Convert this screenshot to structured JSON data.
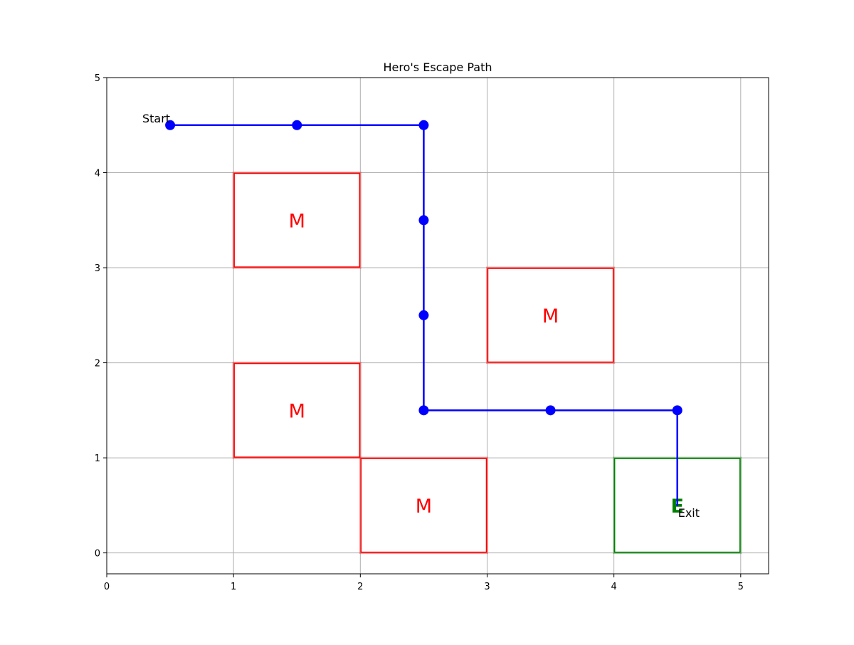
{
  "chart_data": {
    "type": "line",
    "title": "Hero's Escape Path",
    "xlabel": "",
    "ylabel": "",
    "xlim": [
      0,
      5.22
    ],
    "ylim": [
      -0.22,
      5
    ],
    "xticks": [
      "0",
      "1",
      "2",
      "3",
      "4",
      "5"
    ],
    "yticks": [
      "0",
      "1",
      "2",
      "3",
      "4",
      "5"
    ],
    "grid": true,
    "series": [
      {
        "color": "#0000ff",
        "x": [
          0.5,
          1.5,
          2.5,
          2.5,
          2.5,
          2.5,
          3.5,
          4.5,
          4.5
        ],
        "y": [
          4.5,
          4.5,
          4.5,
          3.5,
          2.5,
          1.5,
          1.5,
          1.5,
          0.5
        ]
      }
    ],
    "zones": [
      {
        "label": "M",
        "x0": 1,
        "x1": 2,
        "y0": 3,
        "y1": 4,
        "color": "#ff0000"
      },
      {
        "label": "M",
        "x0": 3,
        "x1": 4,
        "y0": 2,
        "y1": 3,
        "color": "#ff0000"
      },
      {
        "label": "M",
        "x0": 1,
        "x1": 2,
        "y0": 1,
        "y1": 2,
        "color": "#ff0000"
      },
      {
        "label": "M",
        "x0": 2,
        "x1": 3,
        "y0": 0,
        "y1": 1,
        "color": "#ff0000"
      },
      {
        "label": "E",
        "x0": 4,
        "x1": 5,
        "y0": 0,
        "y1": 1,
        "color": "#008000"
      }
    ],
    "annotations": [
      {
        "text": "Start",
        "x": 0.5,
        "y": 4.5
      },
      {
        "text": "Exit",
        "x": 4.5,
        "y": 0.5
      }
    ],
    "colors": {
      "grid": "#b0b0b0",
      "axes": "#000000",
      "path": "#0000ff",
      "monster": "#ff0000",
      "exit": "#008000"
    }
  }
}
